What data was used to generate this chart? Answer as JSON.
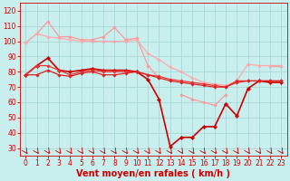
{
  "xlabel": "Vent moyen/en rafales ( km/h )",
  "xlim": [
    -0.5,
    23.5
  ],
  "ylim": [
    25,
    125
  ],
  "yticks": [
    30,
    40,
    50,
    60,
    70,
    80,
    90,
    100,
    110,
    120
  ],
  "xticks": [
    0,
    1,
    2,
    3,
    4,
    5,
    6,
    7,
    8,
    9,
    10,
    11,
    12,
    13,
    14,
    15,
    16,
    17,
    18,
    19,
    20,
    21,
    22,
    23
  ],
  "bg_color": "#c8eeee",
  "grid_color": "#a8d8d8",
  "series": [
    {
      "y": [
        99,
        105,
        113,
        103,
        103,
        101,
        101,
        103,
        109,
        101,
        102,
        84,
        76,
        null,
        65,
        62,
        60,
        58,
        65,
        null,
        85,
        null,
        84,
        84
      ],
      "color": "#ff9999",
      "marker": "D",
      "markersize": 1.8,
      "linewidth": 0.9
    },
    {
      "y": [
        99,
        105,
        103,
        102,
        101,
        100,
        100,
        100,
        100,
        100,
        101,
        92,
        88,
        83,
        80,
        76,
        73,
        72,
        71,
        74,
        85,
        84,
        84,
        84
      ],
      "color": "#ffaaaa",
      "marker": "D",
      "markersize": 1.8,
      "linewidth": 0.9
    },
    {
      "y": [
        78,
        84,
        89,
        81,
        80,
        81,
        82,
        81,
        81,
        81,
        80,
        75,
        62,
        31,
        37,
        37,
        44,
        44,
        59,
        51,
        69,
        74,
        73,
        73
      ],
      "color": "#cc0000",
      "marker": "D",
      "markersize": 2.2,
      "linewidth": 1.2
    },
    {
      "y": [
        78,
        84,
        84,
        81,
        78,
        80,
        81,
        80,
        80,
        80,
        80,
        78,
        77,
        75,
        74,
        73,
        72,
        71,
        70,
        74,
        74,
        74,
        74,
        74
      ],
      "color": "#ee3333",
      "marker": "D",
      "markersize": 1.8,
      "linewidth": 0.9
    },
    {
      "y": [
        78,
        78,
        81,
        78,
        77,
        79,
        80,
        78,
        78,
        79,
        80,
        78,
        76,
        74,
        73,
        72,
        71,
        70,
        70,
        73,
        74,
        74,
        74,
        74
      ],
      "color": "#dd2222",
      "marker": "D",
      "markersize": 1.8,
      "linewidth": 0.9
    }
  ],
  "tick_fontsize": 5.5,
  "label_fontsize": 7
}
